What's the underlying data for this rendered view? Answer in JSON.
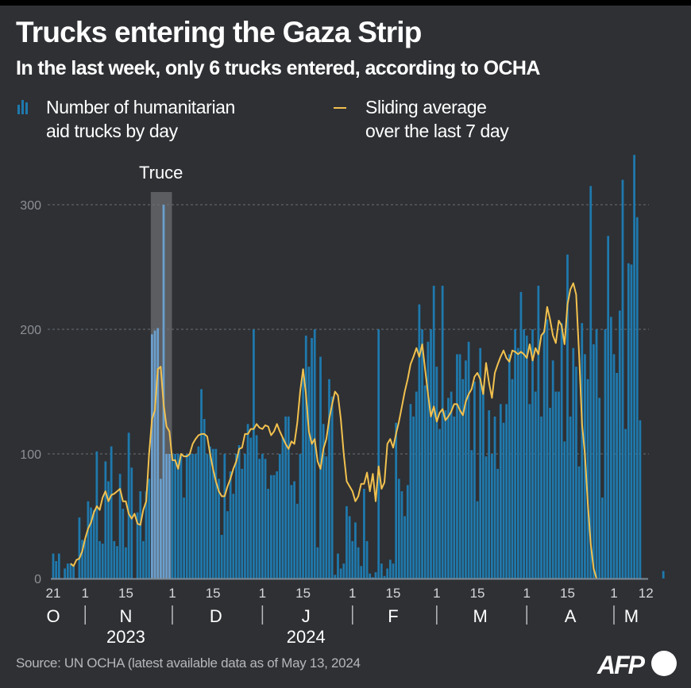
{
  "header": {
    "title": "Trucks entering the Gaza Strip",
    "subtitle": "In the last week, only 6 trucks entered, according to OCHA"
  },
  "legend": {
    "bars_label_line1": "Number of humanitarian",
    "bars_label_line2": "aid trucks by day",
    "line_label_line1": "Sliding average",
    "line_label_line2": "over the last 7 day"
  },
  "annotation": {
    "truce_label": "Truce",
    "truce_start_day": 34,
    "truce_end_day": 40
  },
  "footer": {
    "source": "Source: UN OCHA (latest available data as of May 13, 2024",
    "logo": "AFP"
  },
  "colors": {
    "background": "#2e3034",
    "bar": "#1f79ad",
    "bar_truce": "#6a9fce",
    "line": "#f2c14e",
    "truce_band": "#5b5d61",
    "grid": "#6b6e73"
  },
  "chart_data": {
    "type": "bar",
    "title": "Trucks entering the Gaza Strip",
    "subtitle": "In the last week, only 6 trucks entered, according to OCHA",
    "xlabel": "",
    "ylabel": "",
    "ylim": [
      0,
      340
    ],
    "yticks": [
      0,
      100,
      200,
      300
    ],
    "grid": true,
    "legend_position": "top-left",
    "start_date": "2023-10-21",
    "end_date": "2024-05-12",
    "x_tick_labels": [
      {
        "day": 0,
        "label": "21"
      },
      {
        "day": 11,
        "label": "1"
      },
      {
        "day": 25,
        "label": "15"
      },
      {
        "day": 41,
        "label": "1"
      },
      {
        "day": 55,
        "label": "15"
      },
      {
        "day": 72,
        "label": "1"
      },
      {
        "day": 86,
        "label": "15"
      },
      {
        "day": 103,
        "label": "1"
      },
      {
        "day": 117,
        "label": "15"
      },
      {
        "day": 132,
        "label": "1"
      },
      {
        "day": 146,
        "label": "15"
      },
      {
        "day": 163,
        "label": "1"
      },
      {
        "day": 177,
        "label": "15"
      },
      {
        "day": 193,
        "label": "1"
      },
      {
        "day": 204,
        "label": "12"
      }
    ],
    "month_labels": [
      {
        "label": "O",
        "center_day": 0
      },
      {
        "label": "N",
        "center_day": 25
      },
      {
        "label": "D",
        "center_day": 56
      },
      {
        "label": "J",
        "center_day": 87
      },
      {
        "label": "F",
        "center_day": 117
      },
      {
        "label": "M",
        "center_day": 147
      },
      {
        "label": "A",
        "center_day": 178
      },
      {
        "label": "M",
        "center_day": 199
      }
    ],
    "month_dividers": [
      11,
      41,
      72,
      103,
      132,
      163,
      193
    ],
    "year_labels": [
      {
        "label": "2023",
        "center_day": 25
      },
      {
        "label": "2024",
        "center_day": 87
      }
    ],
    "series": [
      {
        "name": "Number of humanitarian aid trucks by day",
        "type": "bar",
        "values": [
          20,
          14,
          20,
          0,
          8,
          12,
          12,
          10,
          0,
          49,
          31,
          31,
          62,
          57,
          55,
          102,
          30,
          28,
          94,
          78,
          106,
          30,
          26,
          84,
          56,
          25,
          117,
          89,
          0,
          53,
          70,
          30,
          70,
          80,
          196,
          199,
          201,
          80,
          300,
          100,
          100,
          100,
          100,
          100,
          100,
          65,
          100,
          100,
          100,
          100,
          106,
          152,
          128,
          100,
          106,
          104,
          104,
          80,
          35,
          100,
          54,
          86,
          68,
          100,
          107,
          88,
          100,
          124,
          113,
          200,
          115,
          96,
          100,
          96,
          72,
          83,
          83,
          86,
          100,
          113,
          130,
          130,
          75,
          78,
          60,
          100,
          168,
          195,
          170,
          193,
          200,
          25,
          178,
          124,
          98,
          160,
          146,
          3,
          20,
          8,
          12,
          58,
          50,
          30,
          45,
          25,
          10,
          72,
          30,
          4,
          1,
          5,
          200,
          12,
          2,
          8,
          15,
          12,
          125,
          80,
          70,
          50,
          75,
          140,
          130,
          150,
          220,
          200,
          155,
          190,
          200,
          235,
          170,
          120,
          235,
          135,
          145,
          150,
          130,
          180,
          180,
          160,
          175,
          190,
          103,
          158,
          62,
          185,
          155,
          98,
          135,
          100,
          130,
          88,
          140,
          125,
          140,
          180,
          160,
          200,
          185,
          230,
          200,
          195,
          140,
          200,
          150,
          235,
          130,
          200,
          208,
          137,
          175,
          150,
          150,
          205,
          110,
          260,
          130,
          185,
          170,
          90,
          205,
          180,
          160,
          315,
          188,
          200,
          145,
          65,
          200,
          275,
          210,
          180,
          165,
          215,
          320,
          120,
          253,
          252,
          340,
          290,
          127,
          0,
          0,
          0,
          0,
          0,
          0,
          0,
          6
        ]
      },
      {
        "name": "Sliding average over the last 7 day",
        "type": "line",
        "start_day": 6,
        "values": [
          12,
          10,
          15,
          16,
          22,
          32,
          40,
          45,
          53,
          58,
          55,
          65,
          70,
          62,
          67,
          68,
          70,
          72,
          62,
          62,
          52,
          48,
          52,
          44,
          43,
          55,
          62,
          100,
          128,
          135,
          168,
          170,
          140,
          122,
          118,
          95,
          95,
          88,
          100,
          98,
          98,
          100,
          108,
          112,
          115,
          116,
          116,
          114,
          100,
          88,
          78,
          70,
          66,
          66,
          74,
          80,
          88,
          94,
          104,
          105,
          116,
          116,
          120,
          120,
          124,
          121,
          120,
          123,
          122,
          115,
          118,
          124,
          118,
          113,
          108,
          104,
          110,
          108,
          125,
          150,
          168,
          148,
          118,
          108,
          112,
          94,
          88,
          104,
          112,
          128,
          140,
          150,
          147,
          128,
          100,
          78,
          74,
          70,
          62,
          66,
          76,
          76,
          85,
          70,
          84,
          62,
          90,
          72,
          77,
          108,
          112,
          105,
          116,
          126,
          138,
          150,
          160,
          172,
          178,
          185,
          178,
          188,
          168,
          148,
          130,
          138,
          126,
          133,
          136,
          127,
          130,
          134,
          140,
          140,
          135,
          131,
          142,
          148,
          152,
          162,
          165,
          160,
          148,
          173,
          157,
          145,
          165,
          172,
          178,
          183,
          177,
          174,
          183,
          182,
          180,
          182,
          180,
          177,
          188,
          175,
          185,
          180,
          195,
          198,
          218,
          208,
          195,
          189,
          207,
          203,
          188,
          220,
          232,
          237,
          228,
          180,
          124,
          100,
          60,
          28,
          8,
          0
        ]
      }
    ]
  }
}
